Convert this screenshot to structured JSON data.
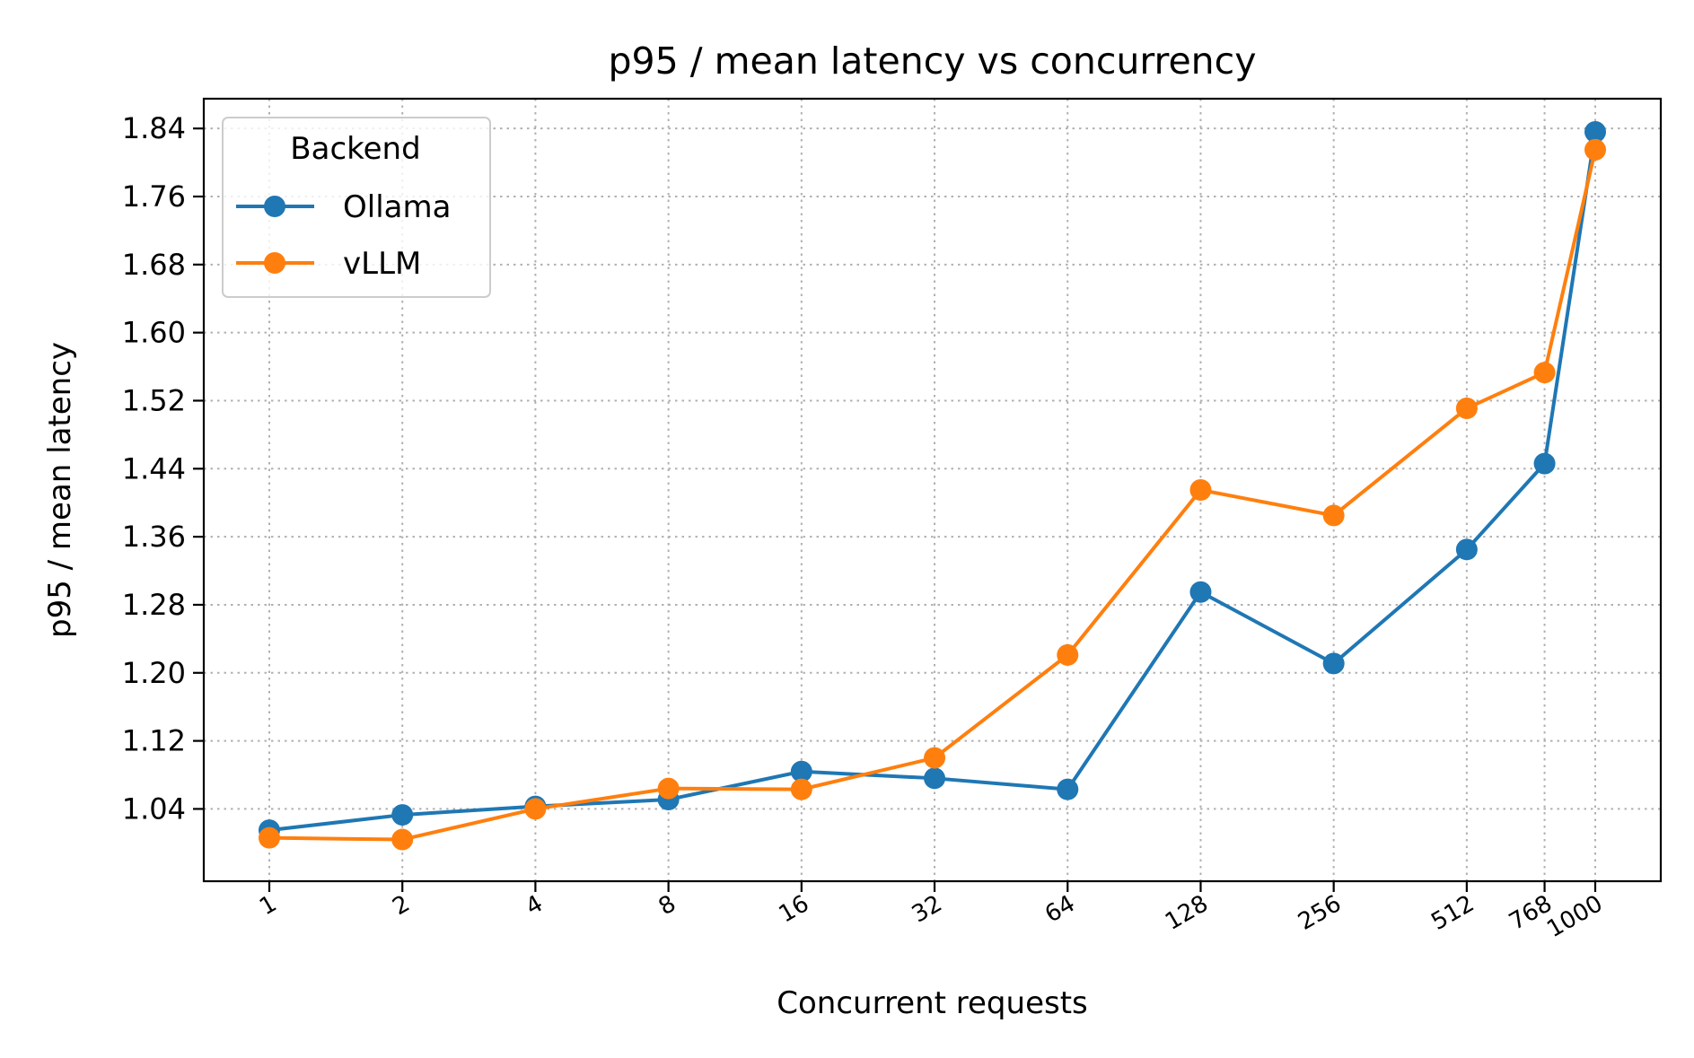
{
  "chart_data": {
    "type": "line",
    "title": "p95 / mean latency vs concurrency",
    "xlabel": "Concurrent requests",
    "ylabel": "p95 / mean latency",
    "x_scale": "log",
    "x": [
      1,
      2,
      4,
      8,
      16,
      32,
      64,
      128,
      256,
      512,
      768,
      1000
    ],
    "x_tick_labels": [
      "1",
      "2",
      "4",
      "8",
      "16",
      "32",
      "64",
      "128",
      "256",
      "512",
      "768",
      "1000"
    ],
    "ylim": [
      0.955,
      1.875
    ],
    "y_ticks": [
      "1.04",
      "1.12",
      "1.20",
      "1.28",
      "1.36",
      "1.44",
      "1.52",
      "1.60",
      "1.68",
      "1.76",
      "1.84"
    ],
    "grid": true,
    "legend": {
      "title": "Backend",
      "location": "upper-left"
    },
    "series": [
      {
        "name": "Ollama",
        "color": "#1f77b4",
        "values": [
          1.015,
          1.033,
          1.043,
          1.051,
          1.084,
          1.076,
          1.063,
          1.295,
          1.211,
          1.345,
          1.446,
          1.836
        ]
      },
      {
        "name": "vLLM",
        "color": "#ff7f0e",
        "values": [
          1.006,
          1.004,
          1.04,
          1.064,
          1.063,
          1.1,
          1.221,
          1.415,
          1.385,
          1.511,
          1.553,
          1.815
        ]
      }
    ]
  }
}
